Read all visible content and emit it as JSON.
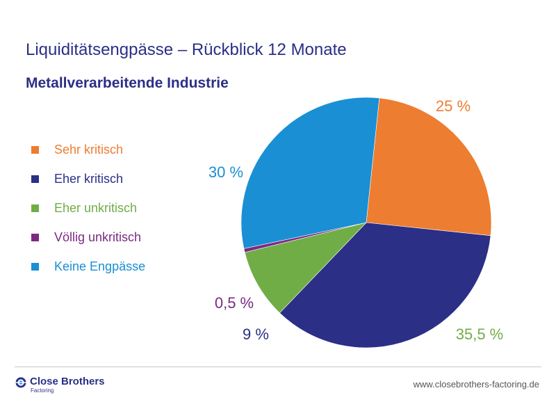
{
  "header": {
    "title": "Liquiditätsengpässe – Rückblick 12 Monate",
    "subtitle": "Metallverarbeitende Industrie"
  },
  "chart_data": {
    "type": "pie",
    "title": "Liquiditätsengpässe – Rückblick 12 Monate",
    "subtitle": "Metallverarbeitende Industrie",
    "categories": [
      "Sehr kritisch",
      "Eher kritisch",
      "Eher unkritisch",
      "Völlig unkritisch",
      "Keine Engpässe"
    ],
    "values": [
      25,
      35.5,
      9,
      0.5,
      30
    ],
    "colors": [
      "#ed7d31",
      "#2b2f86",
      "#70ad47",
      "#7b2a83",
      "#1a8fd3"
    ],
    "labels": [
      {
        "text": "25 %",
        "color": "#ed7d31"
      },
      {
        "text": "35,5 %",
        "color": "#70ad47"
      },
      {
        "text": "9 %",
        "color": "#2b2f86"
      },
      {
        "text": "0,5 %",
        "color": "#7b2a83"
      },
      {
        "text": "30 %",
        "color": "#1a8fd3"
      }
    ],
    "legend_position": "left",
    "start_angle": "top, clockwise"
  },
  "footer": {
    "brand": "Close Brothers",
    "brand_sub": "Factoring",
    "url": "www.closebrothers-factoring.de"
  },
  "colors": {
    "brand": "#2b2f86",
    "logo_accent": "#1a8fd3"
  }
}
